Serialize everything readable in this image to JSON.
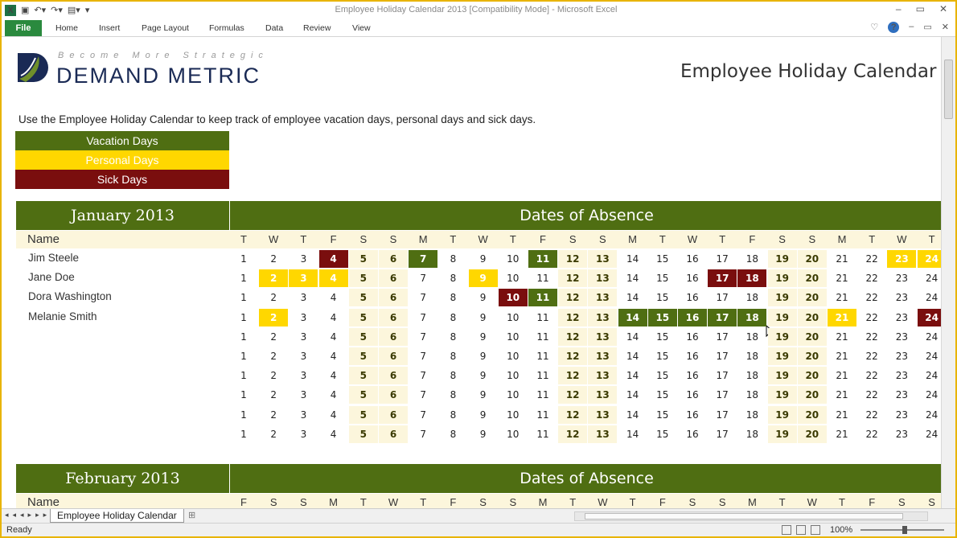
{
  "window": {
    "title": "Employee Holiday Calendar 2013  [Compatibility Mode]  -  Microsoft Excel",
    "controls": [
      "–",
      "▭",
      "✕"
    ]
  },
  "ribbon": {
    "file": "File",
    "tabs": [
      "Home",
      "Insert",
      "Page Layout",
      "Formulas",
      "Data",
      "Review",
      "View"
    ]
  },
  "logo": {
    "tagline": "Become More Strategic",
    "name": "DEMAND METRIC"
  },
  "title": "Employee Holiday Calendar",
  "intro": "Use the Employee Holiday Calendar to keep track of employee vacation days, personal days and sick days.",
  "legend": {
    "vacation": "Vacation Days",
    "personal": "Personal Days",
    "sick": "Sick Days"
  },
  "colors": {
    "vacation": "#4f6e12",
    "personal": "#ffd700",
    "sick": "#7a0e0e",
    "weekend": "#fcf6dc"
  },
  "january": {
    "month": "January 2013",
    "absence_header": "Dates of Absence",
    "name_header": "Name",
    "weekdays": [
      "T",
      "W",
      "T",
      "F",
      "S",
      "S",
      "M",
      "T",
      "W",
      "T",
      "F",
      "S",
      "S",
      "M",
      "T",
      "W",
      "T",
      "F",
      "S",
      "S",
      "M",
      "T",
      "W",
      "T"
    ],
    "days": [
      1,
      2,
      3,
      4,
      5,
      6,
      7,
      8,
      9,
      10,
      11,
      12,
      13,
      14,
      15,
      16,
      17,
      18,
      19,
      20,
      21,
      22,
      23,
      24
    ],
    "weekend_days": [
      5,
      6,
      12,
      13,
      19,
      20
    ],
    "employees": [
      {
        "name": "Jim Steele",
        "vacation": [
          7,
          11
        ],
        "personal": [
          23,
          24
        ],
        "sick": [
          4
        ]
      },
      {
        "name": "Jane Doe",
        "vacation": [],
        "personal": [
          2,
          3,
          4,
          9
        ],
        "sick": [
          17,
          18
        ]
      },
      {
        "name": "Dora Washington",
        "vacation": [
          11
        ],
        "personal": [],
        "sick": [
          10
        ]
      },
      {
        "name": "Melanie Smith",
        "vacation": [
          14,
          15,
          16,
          17,
          18
        ],
        "personal": [
          2,
          21
        ],
        "sick": [
          24
        ]
      },
      {
        "name": "",
        "vacation": [],
        "personal": [],
        "sick": []
      },
      {
        "name": "",
        "vacation": [],
        "personal": [],
        "sick": []
      },
      {
        "name": "",
        "vacation": [],
        "personal": [],
        "sick": []
      },
      {
        "name": "",
        "vacation": [],
        "personal": [],
        "sick": []
      },
      {
        "name": "",
        "vacation": [],
        "personal": [],
        "sick": []
      },
      {
        "name": "",
        "vacation": [],
        "personal": [],
        "sick": []
      }
    ]
  },
  "february": {
    "month": "February 2013",
    "absence_header": "Dates of Absence",
    "name_header": "Name",
    "weekdays": [
      "F",
      "S",
      "S",
      "M",
      "T",
      "W",
      "T",
      "F",
      "S",
      "S",
      "M",
      "T",
      "W",
      "T",
      "F",
      "S",
      "S",
      "M",
      "T",
      "W",
      "T",
      "F",
      "S",
      "S"
    ]
  },
  "sheet_tab": "Employee Holiday Calendar",
  "status": {
    "ready": "Ready",
    "zoom": "100%"
  }
}
